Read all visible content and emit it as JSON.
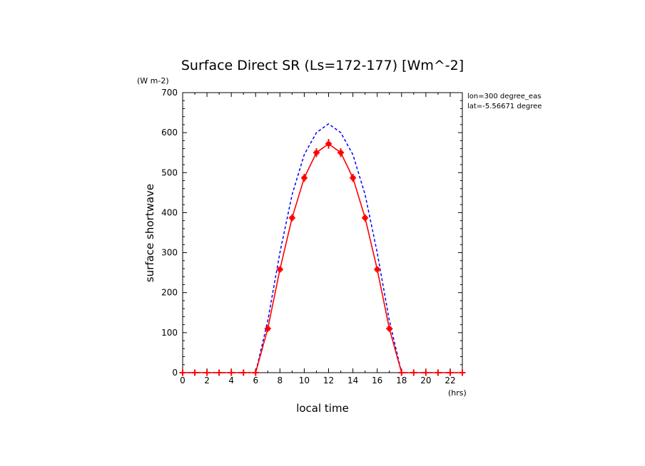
{
  "chart_data": {
    "type": "line",
    "title": "Surface Direct SR (Ls=172-177) [Wm^-2]",
    "ylabel": "surface shortwave",
    "yunit": "(W m-2)",
    "xlabel": "local time",
    "xunit": "(hrs)",
    "annotations": [
      "lon=300 degree_eas",
      "lat=-5.56671 degree"
    ],
    "xlim": [
      0,
      23
    ],
    "ylim": [
      0,
      700
    ],
    "xticks": [
      0,
      2,
      4,
      6,
      8,
      10,
      12,
      14,
      16,
      18,
      20,
      22
    ],
    "yticks": [
      0,
      100,
      200,
      300,
      400,
      500,
      600,
      700
    ],
    "x": [
      0,
      1,
      2,
      3,
      4,
      5,
      6,
      7,
      8,
      9,
      10,
      11,
      12,
      13,
      14,
      15,
      16,
      17,
      18,
      19,
      20,
      21,
      22,
      23
    ],
    "series": [
      {
        "style": "dashed",
        "color": "#0000ff",
        "values": [
          0,
          0,
          0,
          0,
          0,
          0,
          0,
          130,
          300,
          445,
          545,
          600,
          622,
          600,
          545,
          445,
          300,
          130,
          0,
          0,
          0,
          0,
          0,
          0
        ]
      },
      {
        "style": "solid-markers",
        "color": "#ff0000",
        "values": [
          0,
          0,
          0,
          0,
          0,
          0,
          0,
          110,
          258,
          387,
          487,
          550,
          572,
          550,
          487,
          387,
          258,
          110,
          0,
          0,
          0,
          0,
          0,
          0
        ],
        "errors": [
          0,
          0,
          0,
          0,
          0,
          0,
          0,
          4,
          7,
          9,
          10,
          11,
          12,
          11,
          10,
          9,
          7,
          4,
          0,
          0,
          0,
          0,
          0,
          0
        ]
      }
    ]
  }
}
